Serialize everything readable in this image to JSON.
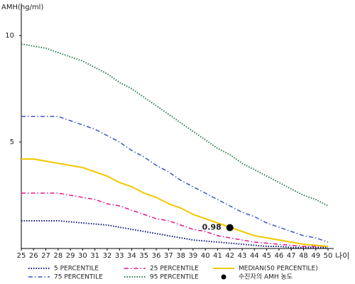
{
  "chart_data": {
    "type": "line",
    "y_label": "AMH(ng/ml)",
    "x_label": "나이",
    "x": [
      25,
      26,
      27,
      28,
      29,
      30,
      31,
      32,
      33,
      34,
      35,
      36,
      37,
      38,
      39,
      40,
      41,
      42,
      43,
      44,
      45,
      46,
      47,
      48,
      49,
      50
    ],
    "xlim": [
      25,
      50
    ],
    "ylim": [
      0,
      11.5
    ],
    "yticks": [
      5,
      10
    ],
    "series": [
      {
        "name": "5 PERCENTILE",
        "color": "#0a1a7a",
        "dash": "dotted",
        "values": [
          1.3,
          1.3,
          1.3,
          1.3,
          1.25,
          1.2,
          1.15,
          1.1,
          1.0,
          0.9,
          0.8,
          0.7,
          0.6,
          0.5,
          0.4,
          0.35,
          0.3,
          0.25,
          0.2,
          0.15,
          0.1,
          0.1,
          0.05,
          0.05,
          0.05,
          0.05
        ]
      },
      {
        "name": "75 PERCENTILE",
        "color": "#3a55c8",
        "dash": "dashdot",
        "values": [
          6.2,
          6.2,
          6.2,
          6.2,
          6.0,
          5.8,
          5.6,
          5.3,
          5.0,
          4.6,
          4.3,
          3.9,
          3.6,
          3.2,
          2.9,
          2.6,
          2.3,
          2.0,
          1.7,
          1.5,
          1.2,
          1.0,
          0.8,
          0.6,
          0.5,
          0.3
        ]
      },
      {
        "name": "25 PERCENTILE",
        "color": "#e0198a",
        "dash": "dashdot",
        "values": [
          2.6,
          2.6,
          2.6,
          2.6,
          2.5,
          2.4,
          2.3,
          2.1,
          2.0,
          1.8,
          1.6,
          1.4,
          1.3,
          1.1,
          0.9,
          0.8,
          0.6,
          0.5,
          0.4,
          0.3,
          0.25,
          0.2,
          0.15,
          0.1,
          0.1,
          0.1
        ]
      },
      {
        "name": "95 PERCENTILE",
        "color": "#2e7d4f",
        "dash": "dotted",
        "values": [
          9.6,
          9.5,
          9.4,
          9.2,
          9.0,
          8.8,
          8.5,
          8.2,
          7.8,
          7.5,
          7.1,
          6.7,
          6.3,
          5.9,
          5.5,
          5.1,
          4.7,
          4.4,
          4.0,
          3.7,
          3.4,
          3.1,
          2.8,
          2.5,
          2.3,
          2.0
        ]
      },
      {
        "name": "MEDIAN(50 PERCENTILE)",
        "color": "#f2c800",
        "dash": "solid",
        "values": [
          4.2,
          4.2,
          4.1,
          4.0,
          3.9,
          3.8,
          3.6,
          3.4,
          3.1,
          2.9,
          2.6,
          2.4,
          2.1,
          1.9,
          1.6,
          1.4,
          1.2,
          1.0,
          0.8,
          0.6,
          0.5,
          0.4,
          0.3,
          0.2,
          0.15,
          0.1
        ]
      }
    ],
    "point": {
      "name": "수진자의 AMH 농도",
      "x": 42,
      "y": 0.98,
      "color": "#000000"
    }
  }
}
